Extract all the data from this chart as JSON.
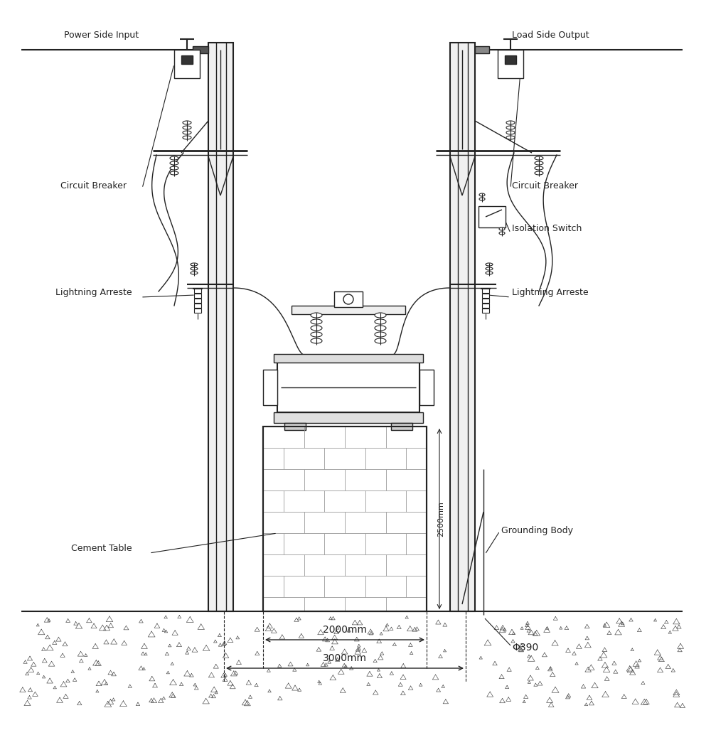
{
  "bg_color": "#ffffff",
  "line_color": "#222222",
  "labels": {
    "power_side": "Power Side Input",
    "load_side": "Load Side Output",
    "circuit_breaker_left": "Circuit Breaker",
    "circuit_breaker_right": "Circuit Breaker",
    "isolation_switch": "Isolation Switch",
    "lightning_left": "Lightning Arreste",
    "lightning_right": "Lightning Arreste",
    "cement_table": "Cement Table",
    "grounding_body": "Grounding Body",
    "dim_2000": "2000mm",
    "dim_3000": "3000mm",
    "dim_2500": "2500mm",
    "dim_phi": "Φ390"
  }
}
